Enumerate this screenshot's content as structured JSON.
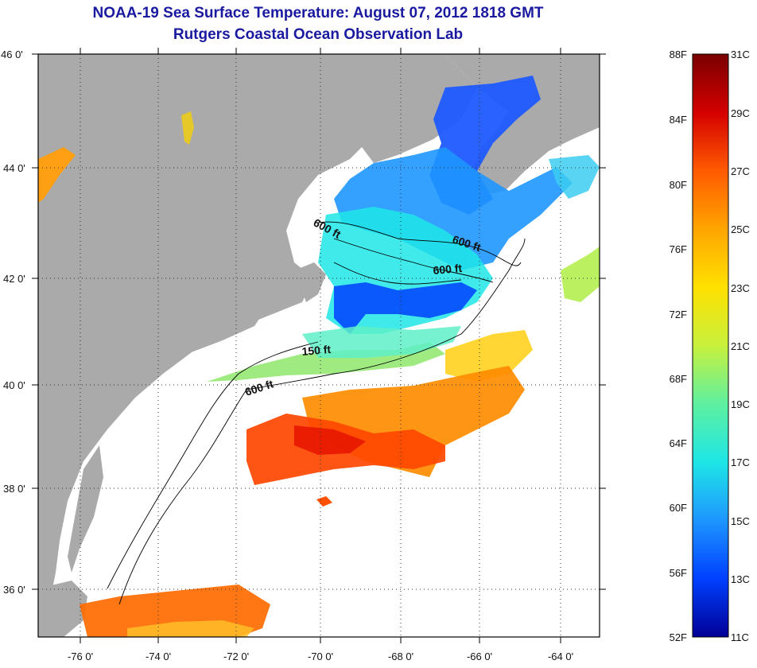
{
  "title": {
    "line1": "NOAA-19 Sea Surface Temperature:  August 07, 2012 1818 GMT",
    "line2": "Rutgers Coastal Ocean Observation Lab"
  },
  "axes": {
    "lat_labels": [
      "46 0'",
      "44 0'",
      "42 0'",
      "40 0'",
      "38 0'",
      "36 0'"
    ],
    "lon_labels": [
      "-76 0'",
      "-74 0'",
      "-72 0'",
      "-70 0'",
      "-68 0'",
      "-66 0'",
      "-64 0'"
    ]
  },
  "contour_labels": [
    "600 ft",
    "600 ft",
    "600 ft",
    "150 ft",
    "600 ft"
  ],
  "colorbar": {
    "fahrenheit": [
      "88F",
      "84F",
      "80F",
      "76F",
      "72F",
      "68F",
      "64F",
      "60F",
      "56F",
      "52F"
    ],
    "celsius": [
      "31C",
      "29C",
      "27C",
      "25C",
      "23C",
      "21C",
      "19C",
      "17C",
      "15C",
      "13C",
      "11C"
    ],
    "gradient": [
      "#7a0000",
      "#d40000",
      "#ff5a00",
      "#ffa500",
      "#ffe100",
      "#c8f03c",
      "#5ef0a0",
      "#1ee6e6",
      "#1e96ff",
      "#0040ff",
      "#000096"
    ]
  },
  "colors": {
    "land": "#aaaaaa",
    "title": "#1a1aa0",
    "grid": "#333333"
  }
}
